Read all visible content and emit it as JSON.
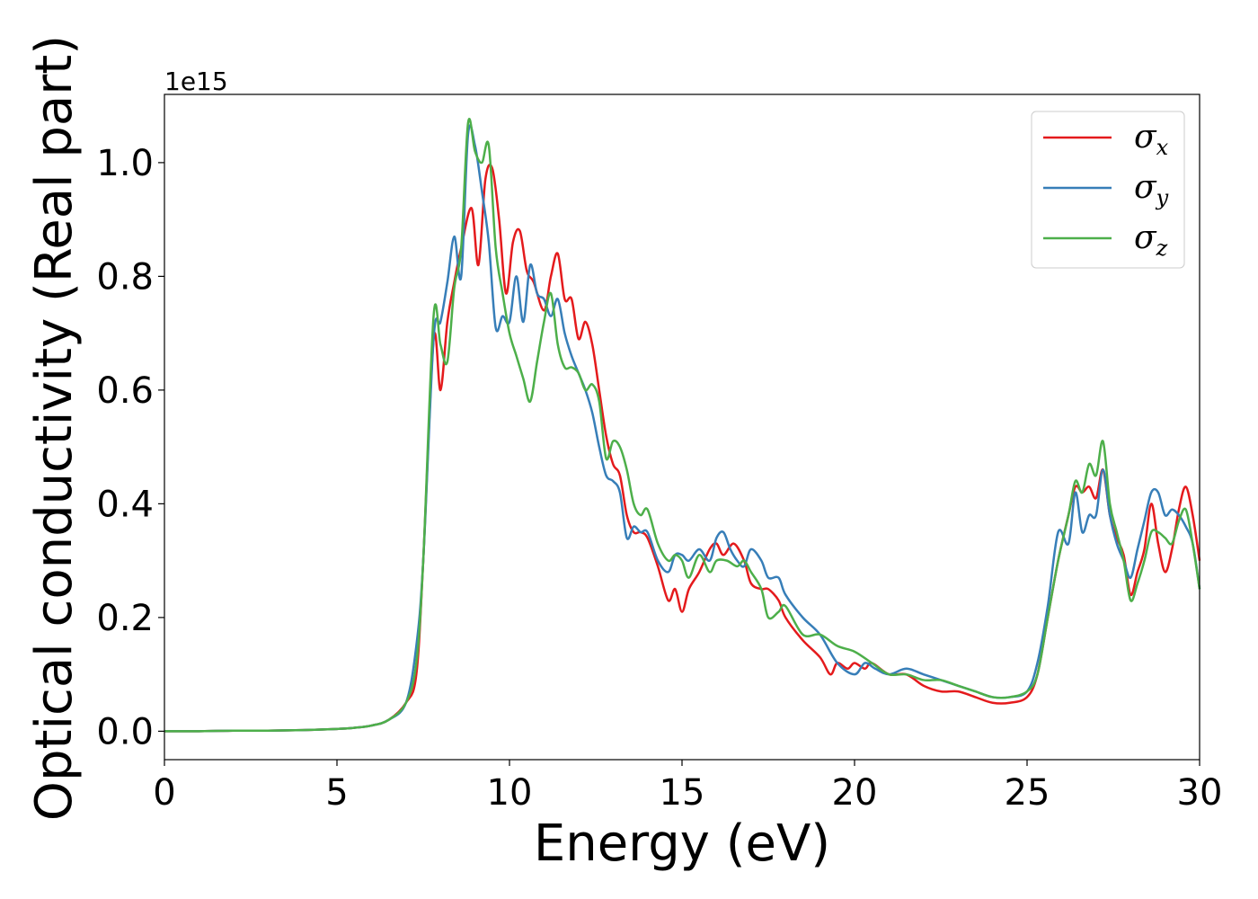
{
  "chart_data": {
    "type": "line",
    "xlabel": "Energy (eV)",
    "ylabel": "Optical conductivity (Real part)",
    "y_offset_label": "1e15",
    "xlim": [
      0,
      30
    ],
    "ylim": [
      -0.05,
      1.12
    ],
    "x_ticks": [
      0,
      5,
      10,
      15,
      20,
      25,
      30
    ],
    "x_tick_labels": [
      "0",
      "5",
      "10",
      "15",
      "20",
      "25",
      "30"
    ],
    "y_ticks": [
      0.0,
      0.2,
      0.4,
      0.6,
      0.8,
      1.0
    ],
    "y_tick_labels": [
      "0.0",
      "0.2",
      "0.4",
      "0.6",
      "0.8",
      "1.0"
    ],
    "grid": false,
    "legend_position": "top-right",
    "series": [
      {
        "name": "σx",
        "symbol": "σ",
        "subscript": "x",
        "color": "#e41a1c",
        "x": [
          0,
          1,
          2,
          3,
          4,
          5,
          5.5,
          6,
          6.5,
          7,
          7.3,
          7.5,
          7.8,
          8.0,
          8.2,
          8.4,
          8.6,
          8.9,
          9.1,
          9.3,
          9.5,
          9.7,
          9.9,
          10.1,
          10.3,
          10.5,
          10.7,
          11.0,
          11.2,
          11.4,
          11.6,
          11.8,
          12.0,
          12.2,
          12.4,
          12.6,
          12.8,
          13.0,
          13.2,
          13.4,
          13.6,
          13.8,
          14.0,
          14.3,
          14.6,
          14.8,
          15.0,
          15.2,
          15.5,
          15.8,
          16.0,
          16.2,
          16.5,
          16.8,
          17.0,
          17.3,
          17.5,
          17.8,
          18.0,
          18.5,
          19.0,
          19.3,
          19.5,
          19.8,
          20.0,
          20.3,
          20.5,
          21.0,
          21.5,
          22.0,
          22.5,
          23.0,
          23.5,
          24.0,
          24.5,
          25.0,
          25.3,
          25.6,
          25.9,
          26.2,
          26.4,
          26.6,
          26.8,
          27.0,
          27.2,
          27.4,
          27.6,
          27.8,
          28.0,
          28.2,
          28.4,
          28.6,
          28.8,
          29.0,
          29.2,
          29.4,
          29.6,
          29.8,
          30.0
        ],
        "y": [
          0,
          0,
          0.001,
          0.001,
          0.002,
          0.004,
          0.006,
          0.01,
          0.02,
          0.05,
          0.1,
          0.3,
          0.69,
          0.6,
          0.72,
          0.79,
          0.85,
          0.92,
          0.82,
          0.97,
          0.99,
          0.9,
          0.77,
          0.86,
          0.88,
          0.81,
          0.79,
          0.74,
          0.8,
          0.84,
          0.76,
          0.76,
          0.69,
          0.72,
          0.68,
          0.6,
          0.52,
          0.47,
          0.45,
          0.38,
          0.35,
          0.35,
          0.34,
          0.29,
          0.23,
          0.25,
          0.21,
          0.25,
          0.28,
          0.32,
          0.33,
          0.31,
          0.33,
          0.3,
          0.26,
          0.25,
          0.25,
          0.23,
          0.2,
          0.16,
          0.13,
          0.1,
          0.12,
          0.11,
          0.12,
          0.11,
          0.12,
          0.1,
          0.1,
          0.08,
          0.07,
          0.07,
          0.06,
          0.05,
          0.05,
          0.06,
          0.1,
          0.2,
          0.3,
          0.38,
          0.43,
          0.42,
          0.43,
          0.41,
          0.46,
          0.38,
          0.34,
          0.31,
          0.24,
          0.28,
          0.32,
          0.4,
          0.33,
          0.28,
          0.32,
          0.39,
          0.43,
          0.38,
          0.3
        ]
      },
      {
        "name": "σy",
        "symbol": "σ",
        "subscript": "y",
        "color": "#377eb8",
        "x": [
          0,
          1,
          2,
          3,
          4,
          5,
          5.5,
          6,
          6.5,
          7,
          7.3,
          7.5,
          7.8,
          8.0,
          8.2,
          8.4,
          8.6,
          8.8,
          9.0,
          9.2,
          9.4,
          9.6,
          9.8,
          10.0,
          10.2,
          10.4,
          10.6,
          10.8,
          11.0,
          11.2,
          11.4,
          11.6,
          11.8,
          12.0,
          12.2,
          12.4,
          12.6,
          12.8,
          13.0,
          13.2,
          13.4,
          13.6,
          13.8,
          14.0,
          14.3,
          14.6,
          14.8,
          15.0,
          15.2,
          15.5,
          15.8,
          16.0,
          16.2,
          16.4,
          16.6,
          16.8,
          17.0,
          17.3,
          17.5,
          17.8,
          18.0,
          18.5,
          19.0,
          19.5,
          20.0,
          20.3,
          20.6,
          21.0,
          21.5,
          22.0,
          22.5,
          23.0,
          23.5,
          24.0,
          24.5,
          25.0,
          25.3,
          25.6,
          25.9,
          26.2,
          26.4,
          26.6,
          26.8,
          27.0,
          27.2,
          27.4,
          27.6,
          27.8,
          28.0,
          28.2,
          28.4,
          28.6,
          28.8,
          29.0,
          29.2,
          29.4,
          29.6,
          29.8,
          30.0
        ],
        "y": [
          0,
          0,
          0.001,
          0.001,
          0.002,
          0.004,
          0.006,
          0.01,
          0.02,
          0.05,
          0.15,
          0.3,
          0.69,
          0.72,
          0.79,
          0.87,
          0.8,
          1.05,
          1.03,
          0.95,
          0.86,
          0.71,
          0.73,
          0.72,
          0.8,
          0.72,
          0.82,
          0.77,
          0.76,
          0.73,
          0.76,
          0.7,
          0.66,
          0.63,
          0.6,
          0.56,
          0.5,
          0.45,
          0.44,
          0.42,
          0.34,
          0.36,
          0.35,
          0.35,
          0.3,
          0.28,
          0.31,
          0.31,
          0.3,
          0.32,
          0.3,
          0.34,
          0.35,
          0.32,
          0.3,
          0.29,
          0.32,
          0.3,
          0.27,
          0.27,
          0.24,
          0.2,
          0.17,
          0.12,
          0.1,
          0.12,
          0.11,
          0.1,
          0.11,
          0.1,
          0.09,
          0.08,
          0.07,
          0.06,
          0.06,
          0.07,
          0.12,
          0.22,
          0.35,
          0.33,
          0.42,
          0.35,
          0.38,
          0.38,
          0.46,
          0.38,
          0.33,
          0.3,
          0.27,
          0.32,
          0.37,
          0.42,
          0.42,
          0.38,
          0.39,
          0.38,
          0.36,
          0.33,
          0.25
        ]
      },
      {
        "name": "σz",
        "symbol": "σ",
        "subscript": "z",
        "color": "#4daf4a",
        "x": [
          0,
          1,
          2,
          3,
          4,
          5,
          5.5,
          6,
          6.5,
          7,
          7.3,
          7.5,
          7.8,
          8.0,
          8.2,
          8.4,
          8.6,
          8.8,
          9.0,
          9.2,
          9.4,
          9.6,
          9.8,
          10.0,
          10.2,
          10.4,
          10.6,
          10.8,
          11.0,
          11.2,
          11.4,
          11.6,
          11.8,
          12.0,
          12.2,
          12.4,
          12.6,
          12.8,
          13.0,
          13.2,
          13.4,
          13.6,
          13.8,
          14.0,
          14.3,
          14.6,
          14.8,
          15.0,
          15.2,
          15.5,
          15.8,
          16.0,
          16.3,
          16.6,
          16.8,
          17.0,
          17.3,
          17.5,
          17.8,
          18.0,
          18.5,
          19.0,
          19.5,
          20.0,
          20.5,
          21.0,
          21.5,
          22.0,
          22.5,
          23.0,
          23.5,
          24.0,
          24.5,
          25.0,
          25.3,
          25.6,
          25.9,
          26.2,
          26.4,
          26.6,
          26.8,
          27.0,
          27.2,
          27.4,
          27.6,
          27.8,
          28.0,
          28.2,
          28.4,
          28.6,
          28.8,
          29.0,
          29.2,
          29.4,
          29.6,
          29.8,
          30.0
        ],
        "y": [
          0,
          0,
          0.001,
          0.001,
          0.002,
          0.004,
          0.006,
          0.01,
          0.02,
          0.05,
          0.12,
          0.3,
          0.73,
          0.68,
          0.65,
          0.78,
          0.85,
          1.07,
          1.02,
          1.0,
          1.03,
          0.85,
          0.77,
          0.7,
          0.66,
          0.62,
          0.58,
          0.65,
          0.72,
          0.77,
          0.68,
          0.64,
          0.64,
          0.63,
          0.6,
          0.61,
          0.58,
          0.48,
          0.51,
          0.5,
          0.46,
          0.4,
          0.38,
          0.39,
          0.33,
          0.3,
          0.31,
          0.3,
          0.27,
          0.31,
          0.28,
          0.3,
          0.3,
          0.29,
          0.3,
          0.28,
          0.25,
          0.2,
          0.21,
          0.22,
          0.17,
          0.17,
          0.15,
          0.14,
          0.12,
          0.1,
          0.1,
          0.09,
          0.09,
          0.08,
          0.07,
          0.06,
          0.06,
          0.07,
          0.1,
          0.2,
          0.3,
          0.38,
          0.44,
          0.42,
          0.47,
          0.45,
          0.51,
          0.4,
          0.35,
          0.3,
          0.23,
          0.26,
          0.3,
          0.35,
          0.35,
          0.34,
          0.33,
          0.37,
          0.39,
          0.33,
          0.25
        ]
      }
    ]
  }
}
